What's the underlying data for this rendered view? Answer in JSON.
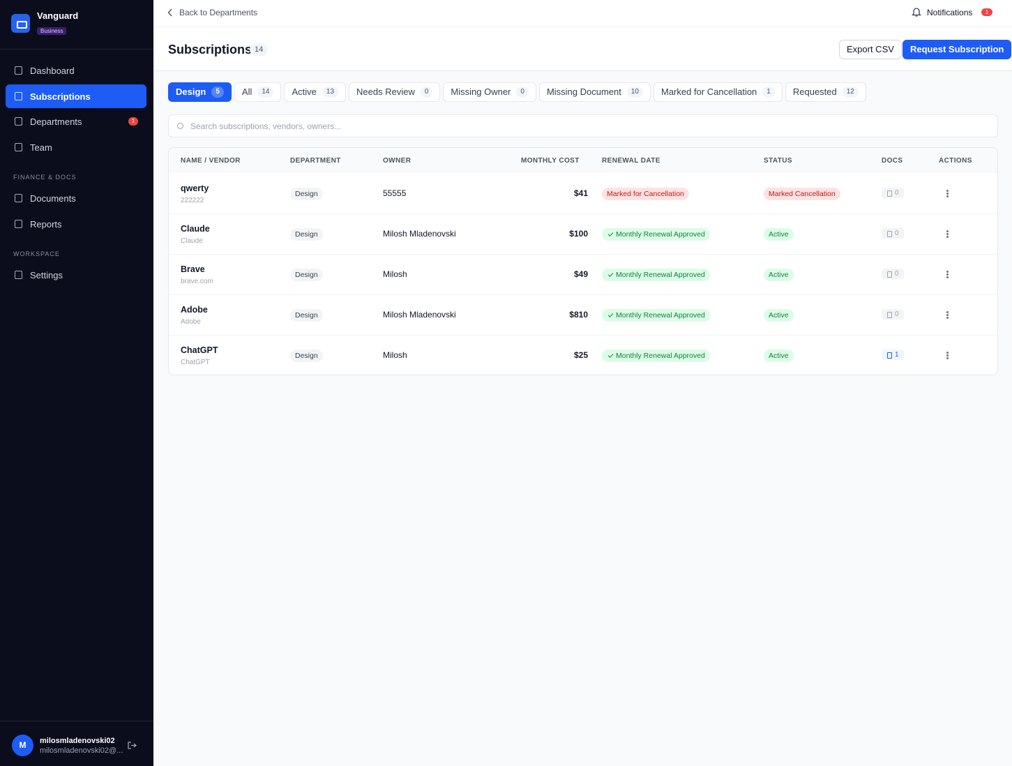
{
  "sidebar": {
    "brand": "Vanguard",
    "plan": "Business",
    "nav": [
      {
        "label": "Dashboard"
      },
      {
        "label": "Subscriptions"
      },
      {
        "label": "Departments",
        "badge": 1
      },
      {
        "label": "Team"
      }
    ],
    "sections": [
      {
        "title": "FINANCE & DOCS",
        "items": [
          "Documents",
          "Reports"
        ]
      },
      {
        "title": "WORKSPACE",
        "items": [
          "Settings"
        ]
      }
    ],
    "user": {
      "avatar": "M",
      "name": "milosmladenovski02",
      "email": "milosmladenovski02@..."
    }
  },
  "topbar": {
    "back": "Back to Departments",
    "notifications": "Notifications",
    "notification_count": 1
  },
  "header": {
    "title": "Subscriptions",
    "count": 14,
    "buttons": [
      "Export CSV",
      "Request Subscription"
    ]
  },
  "tabs": [
    {
      "label": "Design",
      "count": 5
    },
    {
      "label": "All",
      "count": 14
    },
    {
      "label": "Active",
      "count": 13
    },
    {
      "label": "Needs Review",
      "count": 0
    },
    {
      "label": "Missing Owner",
      "count": 0
    },
    {
      "label": "Missing Document",
      "count": 10
    },
    {
      "label": "Marked for Cancellation",
      "count": 1
    },
    {
      "label": "Requested",
      "count": 12
    }
  ],
  "search": {
    "placeholder": "Search subscriptions, vendors, owners..."
  },
  "table": {
    "columns": [
      "NAME / VENDOR",
      "DEPARTMENT",
      "OWNER",
      "MONTHLY COST",
      "RENEWAL DATE",
      "STATUS",
      "DOCS",
      "ACTIONS"
    ],
    "rows": [
      {
        "name": "qwerty",
        "vendor": "222222",
        "department": "Design",
        "owner": "55555",
        "cost": "$41",
        "renewal": "Marked for Cancellation",
        "status": "Marked Cancellation",
        "docs": 0
      },
      {
        "name": "Claude",
        "vendor": "Claude",
        "department": "Design",
        "owner": "Milosh Mladenovski",
        "cost": "$100",
        "renewal": "Monthly Renewal Approved",
        "status": "Active",
        "docs": 0
      },
      {
        "name": "Brave",
        "vendor": "brave.com",
        "department": "Design",
        "owner": "Milosh",
        "cost": "$49",
        "renewal": "Monthly Renewal Approved",
        "status": "Active",
        "docs": 0
      },
      {
        "name": "Adobe",
        "vendor": "Adobe",
        "department": "Design",
        "owner": "Milosh Mladenovski",
        "cost": "$810",
        "renewal": "Monthly Renewal Approved",
        "status": "Active",
        "docs": 0
      },
      {
        "name": "ChatGPT",
        "vendor": "ChatGPT",
        "department": "Design",
        "owner": "Milosh",
        "cost": "$25",
        "renewal": "Monthly Renewal Approved",
        "status": "Active",
        "docs": 1
      }
    ]
  }
}
